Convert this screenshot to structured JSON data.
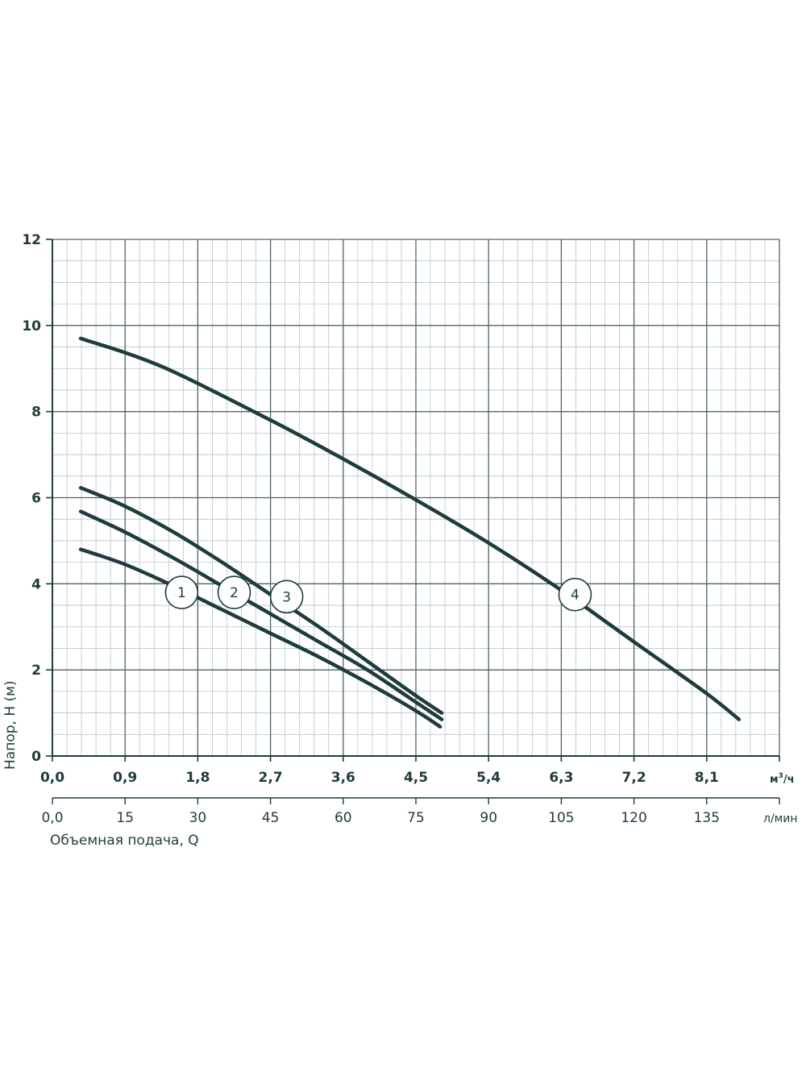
{
  "chart_data": {
    "type": "line",
    "title": "",
    "ylabel": "Напор, H (м)",
    "xlabel": "Объемная подача, Q",
    "ylim": [
      0,
      12
    ],
    "xlim": [
      0,
      9.0
    ],
    "grid": true,
    "y_ticks": [
      "0",
      "2",
      "4",
      "6",
      "8",
      "10",
      "12"
    ],
    "y_tick_values": [
      0,
      2,
      4,
      6,
      8,
      10,
      12
    ],
    "x_ticks_m3h": [
      "0,0",
      "0,9",
      "1,8",
      "2,7",
      "3,6",
      "4,5",
      "5,4",
      "6,3",
      "7,2",
      "8,1"
    ],
    "x_tick_values_m3h": [
      0,
      0.9,
      1.8,
      2.7,
      3.6,
      4.5,
      5.4,
      6.3,
      7.2,
      8.1
    ],
    "x_unit_m3h_base": "м",
    "x_unit_m3h_sup": "3",
    "x_unit_m3h_tail": "/ч",
    "x_ticks_lmin": [
      "0,0",
      "15",
      "30",
      "45",
      "60",
      "75",
      "90",
      "105",
      "120",
      "135"
    ],
    "x_unit_lmin": "л/мин",
    "series": [
      {
        "name": "1",
        "x": [
          0.35,
          0.9,
          1.5,
          2.1,
          2.7,
          3.3,
          3.9,
          4.5,
          4.8
        ],
        "y": [
          4.8,
          4.45,
          3.95,
          3.4,
          2.85,
          2.3,
          1.7,
          1.05,
          0.68
        ],
        "label_at": [
          1.6,
          3.8
        ]
      },
      {
        "name": "2",
        "x": [
          0.35,
          0.9,
          1.5,
          2.1,
          2.7,
          3.3,
          3.9,
          4.5,
          4.82
        ],
        "y": [
          5.68,
          5.2,
          4.6,
          3.95,
          3.3,
          2.65,
          2.0,
          1.25,
          0.85
        ],
        "label_at": [
          2.25,
          3.8
        ]
      },
      {
        "name": "3",
        "x": [
          0.35,
          0.9,
          1.5,
          2.1,
          2.7,
          3.3,
          3.9,
          4.5,
          4.82
        ],
        "y": [
          6.23,
          5.8,
          5.2,
          4.5,
          3.75,
          3.0,
          2.2,
          1.4,
          1.0
        ],
        "label_at": [
          2.9,
          3.7
        ]
      },
      {
        "name": "4",
        "x": [
          0.35,
          1.35,
          2.7,
          3.6,
          4.5,
          5.4,
          6.3,
          7.2,
          8.1,
          8.5
        ],
        "y": [
          9.7,
          9.05,
          7.8,
          6.9,
          5.95,
          4.95,
          3.85,
          2.65,
          1.45,
          0.85
        ],
        "label_at": [
          6.47,
          3.75
        ]
      }
    ]
  }
}
